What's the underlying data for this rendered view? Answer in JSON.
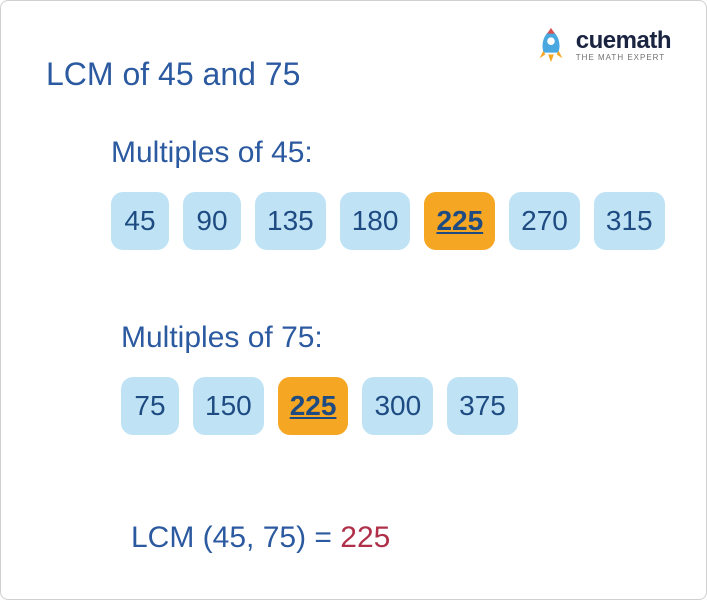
{
  "logo": {
    "brand": "cuemath",
    "tagline": "THE MATH EXPERT",
    "rocket_body_color": "#4aa8e0",
    "rocket_flame_color": "#f5a623",
    "rocket_tip_color": "#d94e4e",
    "brand_color": "#1a2340"
  },
  "title": {
    "text": "LCM of 45 and 75",
    "color": "#2c5aa0",
    "fontsize": 32
  },
  "section1": {
    "label": "Multiples of 45:",
    "label_color": "#2c5aa0",
    "multiples": [
      {
        "value": "45",
        "highlight": false
      },
      {
        "value": "90",
        "highlight": false
      },
      {
        "value": "135",
        "highlight": false
      },
      {
        "value": "180",
        "highlight": false
      },
      {
        "value": "225",
        "highlight": true
      },
      {
        "value": "270",
        "highlight": false
      },
      {
        "value": "315",
        "highlight": false
      }
    ]
  },
  "section2": {
    "label": "Multiples of 75:",
    "label_color": "#2c5aa0",
    "multiples": [
      {
        "value": "75",
        "highlight": false
      },
      {
        "value": "150",
        "highlight": false
      },
      {
        "value": "225",
        "highlight": true
      },
      {
        "value": "300",
        "highlight": false
      },
      {
        "value": "375",
        "highlight": false
      }
    ]
  },
  "chip_style": {
    "normal_bg": "#bfe3f5",
    "highlight_bg": "#f5a623",
    "text_color": "#1e4b82",
    "fontsize": 28,
    "radius": 12
  },
  "result": {
    "prefix": "LCM (45, 75) = ",
    "prefix_color": "#2c5aa0",
    "value": "225",
    "value_color": "#b0304a",
    "fontsize": 30
  },
  "background_color": "#ffffff"
}
